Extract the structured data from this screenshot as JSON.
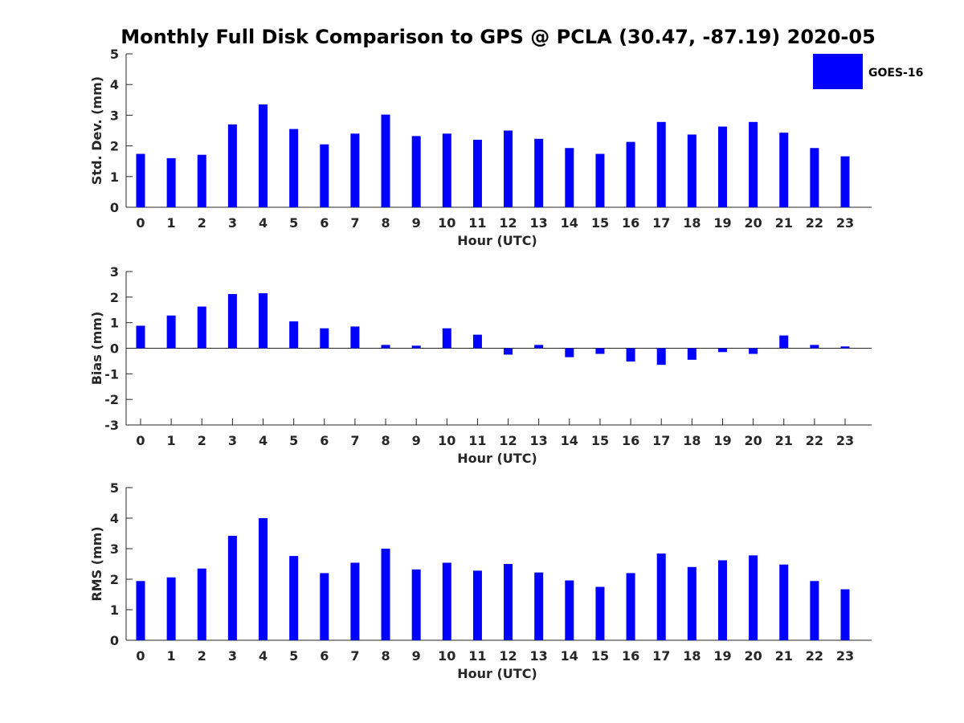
{
  "chart_data": {
    "title": "Monthly Full Disk Comparison to GPS @ PCLA (30.47, -87.19) 2020-05",
    "legend": {
      "label": "GOES-16",
      "placement": "top-right",
      "color": "#0000ff"
    },
    "type": "bar",
    "panels": [
      {
        "name": "std-dev",
        "type": "bar",
        "xlabel": "Hour (UTC)",
        "ylabel": "Std. Dev. (mm)",
        "ylim": [
          0,
          5
        ],
        "yticks": [
          0,
          1,
          2,
          3,
          4,
          5
        ],
        "categories": [
          "0",
          "1",
          "2",
          "3",
          "4",
          "5",
          "6",
          "7",
          "8",
          "9",
          "10",
          "11",
          "12",
          "13",
          "14",
          "15",
          "16",
          "17",
          "18",
          "19",
          "20",
          "21",
          "22",
          "23"
        ],
        "series": [
          {
            "name": "GOES-16",
            "values": [
              1.74,
              1.6,
              1.71,
              2.7,
              3.35,
              2.55,
              2.05,
              2.4,
              3.02,
              2.32,
              2.4,
              2.2,
              2.5,
              2.23,
              1.93,
              1.74,
              2.13,
              2.78,
              2.37,
              2.63,
              2.78,
              2.43,
              1.93,
              1.66
            ]
          }
        ]
      },
      {
        "name": "bias",
        "type": "bar",
        "xlabel": "Hour (UTC)",
        "ylabel": "Bias (mm)",
        "ylim": [
          -3,
          3
        ],
        "yticks": [
          -3,
          -2,
          -1,
          0,
          1,
          2,
          3
        ],
        "categories": [
          "0",
          "1",
          "2",
          "3",
          "4",
          "5",
          "6",
          "7",
          "8",
          "9",
          "10",
          "11",
          "12",
          "13",
          "14",
          "15",
          "16",
          "17",
          "18",
          "19",
          "20",
          "21",
          "22",
          "23"
        ],
        "series": [
          {
            "name": "GOES-16",
            "values": [
              0.88,
              1.28,
              1.63,
              2.12,
              2.15,
              1.05,
              0.78,
              0.85,
              0.13,
              0.1,
              0.78,
              0.53,
              -0.25,
              0.13,
              -0.35,
              -0.22,
              -0.52,
              -0.65,
              -0.45,
              -0.15,
              -0.22,
              0.5,
              0.13,
              0.07
            ]
          }
        ]
      },
      {
        "name": "rms",
        "type": "bar",
        "xlabel": "Hour (UTC)",
        "ylabel": "RMS (mm)",
        "ylim": [
          0,
          5
        ],
        "yticks": [
          0,
          1,
          2,
          3,
          4,
          5
        ],
        "categories": [
          "0",
          "1",
          "2",
          "3",
          "4",
          "5",
          "6",
          "7",
          "8",
          "9",
          "10",
          "11",
          "12",
          "13",
          "14",
          "15",
          "16",
          "17",
          "18",
          "19",
          "20",
          "21",
          "22",
          "23"
        ],
        "series": [
          {
            "name": "GOES-16",
            "values": [
              1.94,
              2.06,
              2.35,
              3.42,
              4.0,
              2.76,
              2.2,
              2.54,
              3.0,
              2.32,
              2.54,
              2.28,
              2.5,
              2.22,
              1.96,
              1.75,
              2.2,
              2.84,
              2.4,
              2.62,
              2.78,
              2.48,
              1.94,
              1.67
            ]
          }
        ]
      }
    ]
  }
}
